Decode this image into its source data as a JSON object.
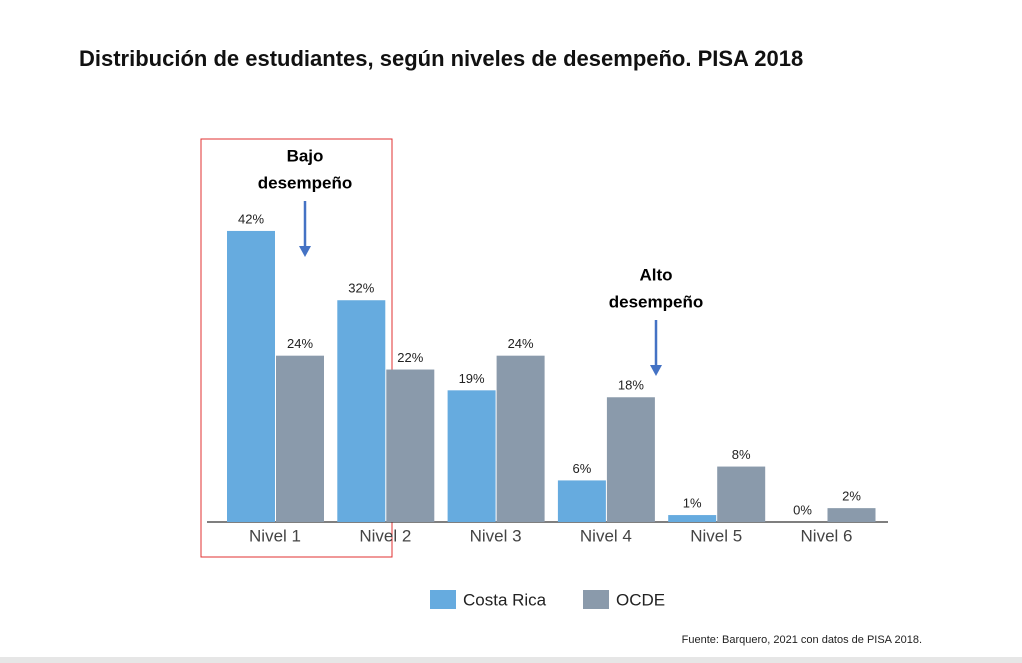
{
  "chart_data": {
    "type": "bar",
    "title": "Distribución de estudiantes, según niveles de desempeño. PISA 2018",
    "categories": [
      "Nivel 1",
      "Nivel 2",
      "Nivel 3",
      "Nivel 4",
      "Nivel 5",
      "Nivel 6"
    ],
    "series": [
      {
        "name": "Costa Rica",
        "color": "#66abdf",
        "values": [
          42,
          32,
          19,
          6,
          1,
          0
        ],
        "value_labels": [
          "42%",
          "32%",
          "19%",
          "6%",
          "1%",
          "0%"
        ]
      },
      {
        "name": "OCDE",
        "color": "#8a9aab",
        "values": [
          24,
          22,
          24,
          18,
          8,
          2
        ],
        "value_labels": [
          "24%",
          "22%",
          "24%",
          "18%",
          "8%",
          "2%"
        ]
      }
    ],
    "annotations": [
      [
        "Bajo",
        "desempeño"
      ],
      [
        "Alto",
        "desempeño"
      ]
    ],
    "source": "Fuente: Barquero, 2021 con datos de PISA 2018."
  }
}
